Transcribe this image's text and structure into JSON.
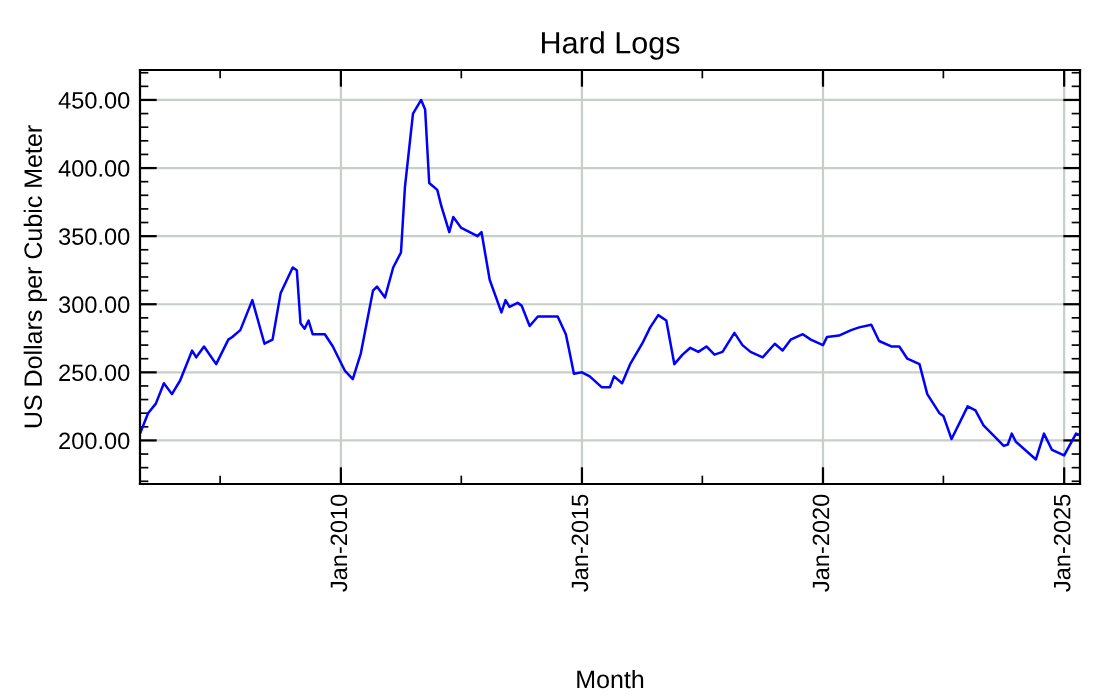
{
  "chart_data": {
    "type": "line",
    "title": "Hard Logs",
    "xlabel": "Month",
    "ylabel": "US Dollars per Cubic Meter",
    "x": [
      "2005-11",
      "2006-01",
      "2006-03",
      "2006-05",
      "2006-07",
      "2006-09",
      "2006-12",
      "2007-01",
      "2007-03",
      "2007-06",
      "2007-09",
      "2007-10",
      "2007-12",
      "2008-03",
      "2008-06",
      "2008-08",
      "2008-10",
      "2009-01",
      "2009-02",
      "2009-03",
      "2009-04",
      "2009-05",
      "2009-06",
      "2009-09",
      "2009-11",
      "2010-02",
      "2010-04",
      "2010-06",
      "2010-09",
      "2010-10",
      "2010-12",
      "2011-02",
      "2011-04",
      "2011-05",
      "2011-07",
      "2011-09",
      "2011-10",
      "2011-11",
      "2012-01",
      "2012-02",
      "2012-04",
      "2012-05",
      "2012-07",
      "2012-11",
      "2012-12",
      "2013-02",
      "2013-05",
      "2013-06",
      "2013-07",
      "2013-09",
      "2013-10",
      "2013-12",
      "2014-02",
      "2014-05",
      "2014-07",
      "2014-09",
      "2014-10",
      "2014-11",
      "2015-01",
      "2015-03",
      "2015-06",
      "2015-08",
      "2015-09",
      "2015-11",
      "2016-01",
      "2016-04",
      "2016-06",
      "2016-08",
      "2016-10",
      "2016-12",
      "2017-02",
      "2017-04",
      "2017-06",
      "2017-08",
      "2017-10",
      "2017-12",
      "2018-03",
      "2018-05",
      "2018-07",
      "2018-10",
      "2019-01",
      "2019-03",
      "2019-05",
      "2019-08",
      "2019-10",
      "2020-01",
      "2020-02",
      "2020-05",
      "2020-08",
      "2020-10",
      "2021-01",
      "2021-03",
      "2021-06",
      "2021-08",
      "2021-10",
      "2022-01",
      "2022-03",
      "2022-06",
      "2022-07",
      "2022-09",
      "2023-01",
      "2023-03",
      "2023-05",
      "2023-08",
      "2023-10",
      "2023-11",
      "2023-12",
      "2024-01",
      "2024-06",
      "2024-08",
      "2024-10",
      "2025-01",
      "2025-04",
      "2025-05"
    ],
    "series": [
      {
        "color": "#0000ff",
        "values": [
          205,
          220,
          227,
          242,
          234,
          244,
          266,
          261,
          269,
          256,
          274,
          276,
          281,
          303,
          271,
          274,
          308,
          327,
          325,
          286,
          282,
          288,
          278,
          278,
          269,
          251,
          245,
          264,
          310,
          313,
          305,
          327,
          338,
          386,
          440,
          450,
          443,
          389,
          384,
          372,
          353,
          364,
          356,
          350,
          353,
          318,
          294,
          303,
          298,
          301,
          299,
          284,
          291,
          291,
          291,
          278,
          264,
          249,
          250,
          247,
          239,
          239,
          247,
          242,
          256,
          271,
          283,
          292,
          288,
          256,
          263,
          268,
          265,
          269,
          263,
          265,
          279,
          270,
          265,
          261,
          271,
          266,
          274,
          278,
          274,
          270,
          276,
          277,
          281,
          283,
          285,
          273,
          269,
          269,
          260,
          256,
          234,
          220,
          218,
          201,
          225,
          222,
          211,
          202,
          196,
          197,
          205,
          199,
          186,
          205,
          193,
          189,
          205,
          204
        ]
      }
    ],
    "xlim": [
      "2005-11",
      "2025-05"
    ],
    "xticks": [
      {
        "value": "2007-07",
        "label": null
      },
      {
        "value": "2010-01",
        "label": "Jan-2010"
      },
      {
        "value": "2012-07",
        "label": null
      },
      {
        "value": "2015-01",
        "label": "Jan-2015"
      },
      {
        "value": "2017-07",
        "label": null
      },
      {
        "value": "2020-01",
        "label": "Jan-2020"
      },
      {
        "value": "2022-07",
        "label": null
      },
      {
        "value": "2025-01",
        "label": "Jan-2025"
      }
    ],
    "ylim": [
      168,
      472
    ],
    "yticks": [
      {
        "value": 170,
        "label": null
      },
      {
        "value": 180,
        "label": null
      },
      {
        "value": 190,
        "label": null
      },
      {
        "value": 200,
        "label": "200.00"
      },
      {
        "value": 210,
        "label": null
      },
      {
        "value": 220,
        "label": null
      },
      {
        "value": 230,
        "label": null
      },
      {
        "value": 240,
        "label": null
      },
      {
        "value": 250,
        "label": "250.00"
      },
      {
        "value": 260,
        "label": null
      },
      {
        "value": 270,
        "label": null
      },
      {
        "value": 280,
        "label": null
      },
      {
        "value": 290,
        "label": null
      },
      {
        "value": 300,
        "label": "300.00"
      },
      {
        "value": 310,
        "label": null
      },
      {
        "value": 320,
        "label": null
      },
      {
        "value": 330,
        "label": null
      },
      {
        "value": 340,
        "label": null
      },
      {
        "value": 350,
        "label": "350.00"
      },
      {
        "value": 360,
        "label": null
      },
      {
        "value": 370,
        "label": null
      },
      {
        "value": 380,
        "label": null
      },
      {
        "value": 390,
        "label": null
      },
      {
        "value": 400,
        "label": "400.00"
      },
      {
        "value": 410,
        "label": null
      },
      {
        "value": 420,
        "label": null
      },
      {
        "value": 430,
        "label": null
      },
      {
        "value": 440,
        "label": null
      },
      {
        "value": 450,
        "label": "450.00"
      },
      {
        "value": 460,
        "label": null
      },
      {
        "value": 470,
        "label": null
      }
    ],
    "grid": true,
    "legend": false,
    "marker": "none",
    "line_style": "solid"
  }
}
